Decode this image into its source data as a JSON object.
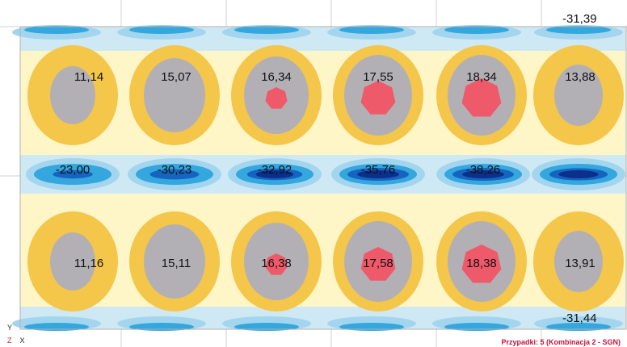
{
  "footer_status": "Przypadki: 5 (Kombinacja 2 - SGN)",
  "axes": {
    "y_label": "Y",
    "z_label": "Z",
    "x_label": "X"
  },
  "colors": {
    "background": "#ffffff",
    "edge_band": "#cfe9f4",
    "light_blue": "#a3d6ee",
    "mid_blue": "#33a7de",
    "deep_blue": "#1565c0",
    "navy": "#0d2f8c",
    "pale_yellow": "#fff6c8",
    "orange_yellow": "#f4c64a",
    "grey": "#b3b0b5",
    "red": "#ee5a6a",
    "footer_text": "#c0143c"
  },
  "map": {
    "top_value": "-31,39",
    "bottom_value": "-31,44",
    "upper_row_values": [
      "11,14",
      "15,07",
      "16,34",
      "17,55",
      "18,34",
      "13,88"
    ],
    "middle_row_values": [
      "-23,00",
      "-30,23",
      "-32,92",
      "-35,76",
      "-38,26"
    ],
    "lower_row_values": [
      "11,16",
      "15,11",
      "16,38",
      "17,58",
      "18,38",
      "13,91"
    ]
  }
}
